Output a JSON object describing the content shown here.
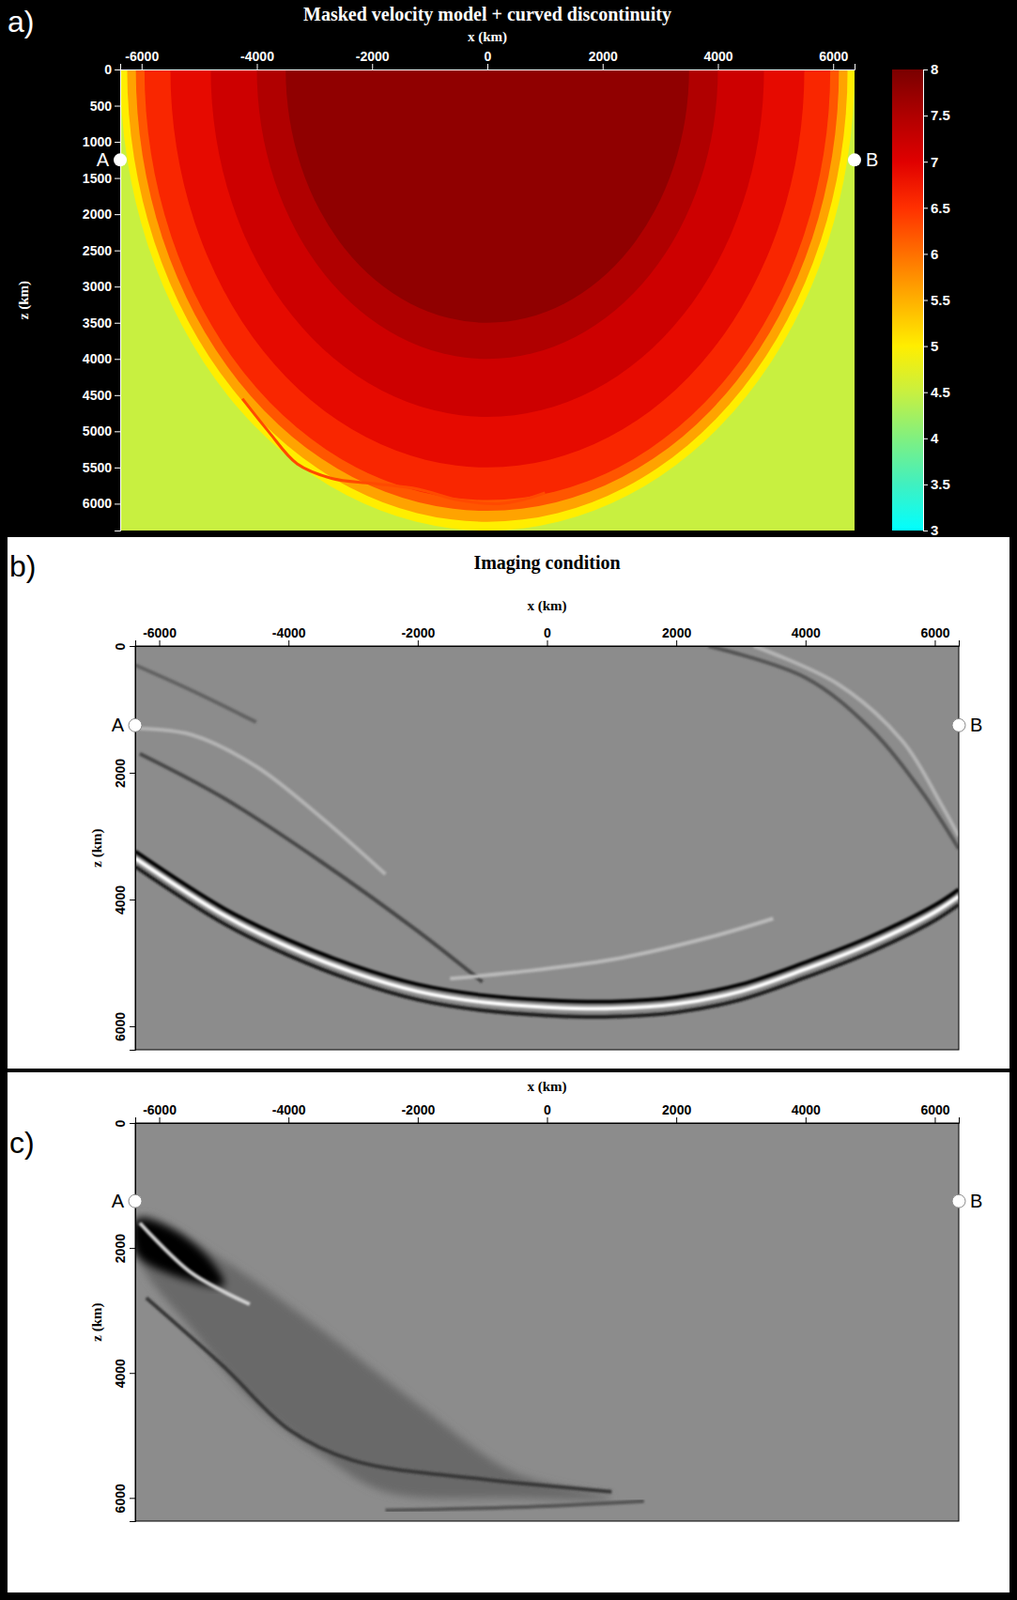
{
  "chart_data": [
    {
      "type": "velocity_model",
      "panel": "a)",
      "title": "Masked velocity model + curved discontinuity",
      "xlabel": "x (km)",
      "ylabel": "z (km)",
      "xlim": [
        -6371,
        6371
      ],
      "ylim": [
        0,
        6371
      ],
      "xticks": [
        -6000,
        -4000,
        -2000,
        0,
        2000,
        4000,
        6000
      ],
      "yticks": [
        0,
        500,
        1000,
        1500,
        2000,
        2500,
        3000,
        3500,
        4000,
        4500,
        5000,
        5500,
        6000
      ],
      "background_velocity": 4.5,
      "rings": [
        {
          "radius": 6371,
          "velocity": 5.0
        },
        {
          "radius": 6250,
          "velocity": 5.6
        },
        {
          "radius": 6100,
          "velocity": 6.2
        },
        {
          "radius": 5950,
          "velocity": 6.6
        },
        {
          "radius": 5500,
          "velocity": 6.9
        },
        {
          "radius": 4800,
          "velocity": 7.2
        },
        {
          "radius": 4000,
          "velocity": 7.5
        },
        {
          "radius": 3500,
          "velocity": 7.8
        }
      ],
      "discontinuity": {
        "x": [
          -4250,
          -3800,
          -3300,
          -2700,
          -2000,
          -1200,
          -500,
          200,
          600,
          1000
        ],
        "z": [
          4550,
          5000,
          5450,
          5650,
          5720,
          5800,
          5950,
          6000,
          5950,
          5850
        ],
        "velocity": 6.3
      },
      "colorbar": {
        "range": [
          3,
          8
        ],
        "ticks": [
          3,
          3.5,
          4,
          4.5,
          5,
          5.5,
          6,
          6.5,
          7,
          7.5,
          8
        ]
      },
      "points": [
        {
          "label": "A",
          "x": -6371,
          "z": 1250
        },
        {
          "label": "B",
          "x": 6371,
          "z": 1250
        }
      ]
    },
    {
      "type": "seismic_image",
      "panel": "b)",
      "title": "Imaging condition",
      "xlabel": "x (km)",
      "ylabel": "z (km)",
      "xlim": [
        -6371,
        6371
      ],
      "ylim": [
        0,
        6371
      ],
      "xticks": [
        -6000,
        -4000,
        -2000,
        0,
        2000,
        4000,
        6000
      ],
      "yticks": [
        0,
        2000,
        4000,
        6000
      ],
      "amplitude_range": [
        -1,
        1
      ],
      "series": [
        {
          "type": "line",
          "amplitude": 1,
          "x": [
            -6371,
            -5000,
            -4000,
            -3000,
            -2000,
            -1000,
            0,
            1000,
            2000,
            3000,
            4000,
            5000,
            6000,
            6371
          ],
          "z": [
            3350,
            4250,
            4750,
            5150,
            5450,
            5620,
            5700,
            5720,
            5650,
            5450,
            5100,
            4700,
            4200,
            3950
          ]
        },
        {
          "type": "line",
          "amplitude": -1,
          "x": [
            -6371,
            -5000,
            -4000,
            -3000,
            -2000,
            -1000,
            0,
            1000,
            2000,
            3000,
            4000,
            5000,
            6000,
            6371
          ],
          "z": [
            3240,
            4140,
            4640,
            5040,
            5340,
            5510,
            5590,
            5610,
            5540,
            5340,
            4990,
            4590,
            4090,
            3840
          ]
        },
        {
          "type": "line",
          "amplitude": -0.8,
          "x": [
            -6371,
            -5000,
            -4000,
            -3000,
            -2000,
            -1000,
            0,
            1000,
            2000,
            3000,
            4000,
            5000,
            6000,
            6371
          ],
          "z": [
            3480,
            4380,
            4880,
            5280,
            5580,
            5750,
            5830,
            5850,
            5780,
            5580,
            5230,
            4830,
            4330,
            4080
          ]
        },
        {
          "type": "line",
          "amplitude": -0.5,
          "x": [
            -6300,
            -5000,
            -3500,
            -2000,
            -1000
          ],
          "z": [
            1700,
            2400,
            3400,
            4500,
            5300
          ]
        },
        {
          "type": "line",
          "amplitude": 0.35,
          "x": [
            -6300,
            -5500,
            -4500,
            -3500,
            -2500
          ],
          "z": [
            1300,
            1400,
            1900,
            2700,
            3600
          ]
        },
        {
          "type": "line",
          "amplitude": 0.4,
          "x": [
            -1500,
            -500,
            1000,
            2500,
            3500
          ],
          "z": [
            5250,
            5150,
            4950,
            4600,
            4300
          ]
        },
        {
          "type": "line",
          "amplitude": -0.4,
          "x": [
            2500,
            4000,
            5000,
            5800,
            6371
          ],
          "z": [
            0,
            500,
            1300,
            2300,
            3200
          ]
        },
        {
          "type": "line",
          "amplitude": 0.35,
          "x": [
            3200,
            4500,
            5500,
            6100,
            6371
          ],
          "z": [
            0,
            600,
            1500,
            2500,
            3000
          ]
        },
        {
          "type": "line",
          "amplitude": -0.3,
          "x": [
            -6371,
            -5500,
            -4500
          ],
          "z": [
            300,
            700,
            1200
          ]
        }
      ],
      "points": [
        {
          "label": "A",
          "x": -6371,
          "z": 1250
        },
        {
          "label": "B",
          "x": 6371,
          "z": 1250
        }
      ]
    },
    {
      "type": "seismic_image",
      "panel": "c)",
      "xlabel": "x (km)",
      "ylabel": "z (km)",
      "xlim": [
        -6371,
        6371
      ],
      "ylim": [
        0,
        6371
      ],
      "xticks": [
        -6000,
        -4000,
        -2000,
        0,
        2000,
        4000,
        6000
      ],
      "yticks": [
        0,
        2000,
        4000,
        6000
      ],
      "amplitude_range": [
        -1,
        1
      ],
      "series": [
        {
          "type": "area",
          "amplitude": -0.25,
          "x": [
            -6300,
            -5000,
            -3500,
            -2000,
            -500,
            1000,
            -500,
            -2500,
            -3500,
            -4500,
            -5500,
            -6300
          ],
          "z": [
            1500,
            2200,
            3300,
            4500,
            5600,
            6000,
            6000,
            5900,
            5300,
            4500,
            3300,
            2200
          ]
        },
        {
          "type": "area",
          "amplitude": -1,
          "x": [
            -6350,
            -5800,
            -5200,
            -5000,
            -5600,
            -6350
          ],
          "z": [
            1550,
            1700,
            2200,
            2600,
            2500,
            2100
          ]
        },
        {
          "type": "line",
          "amplitude": -0.6,
          "x": [
            -6200,
            -5000,
            -4000,
            -3000,
            -1000,
            1000
          ],
          "z": [
            2800,
            3900,
            4900,
            5400,
            5700,
            5900
          ]
        },
        {
          "type": "line",
          "amplitude": 0.6,
          "x": [
            -6300,
            -5500,
            -4600
          ],
          "z": [
            1600,
            2400,
            2900
          ]
        },
        {
          "type": "line",
          "amplitude": -0.4,
          "x": [
            -2500,
            -500,
            1500
          ],
          "z": [
            6200,
            6150,
            6050
          ]
        }
      ],
      "points": [
        {
          "label": "A",
          "x": -6371,
          "z": 1250
        },
        {
          "label": "B",
          "x": 6371,
          "z": 1250
        }
      ]
    }
  ]
}
